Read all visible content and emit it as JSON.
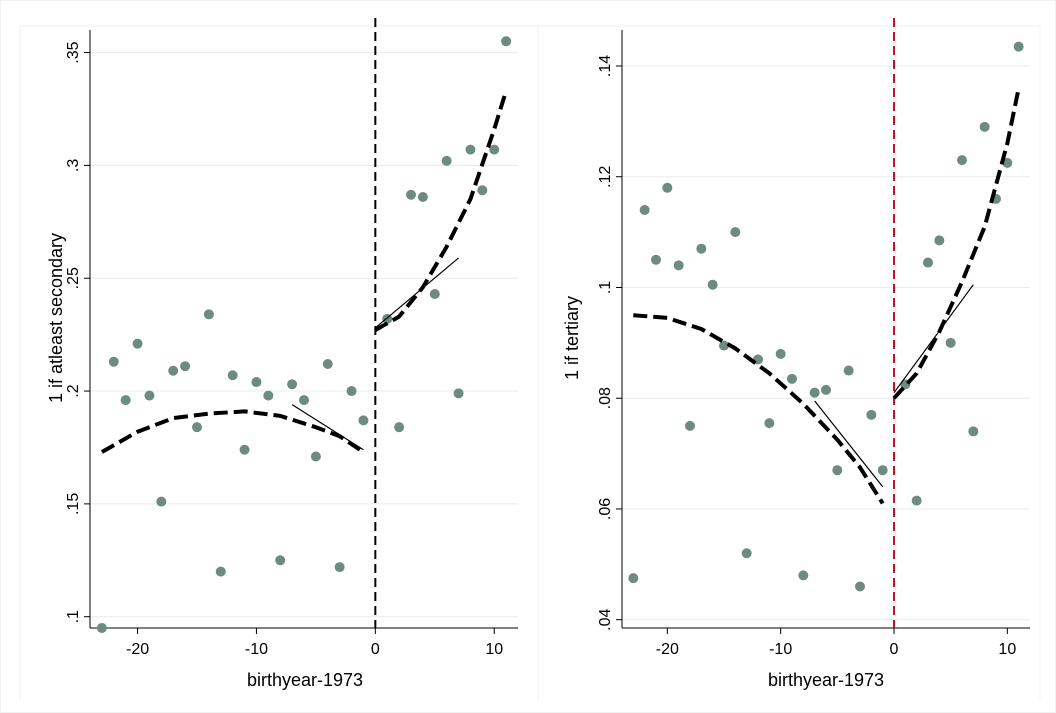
{
  "chart_data": [
    {
      "type": "scatter",
      "xlabel": "birthyear-1973",
      "ylabel": "1 if atleast secondary",
      "xlim": [
        -24,
        12
      ],
      "ylim": [
        0.095,
        0.36
      ],
      "x_ticks": [
        -20,
        -10,
        0,
        10
      ],
      "x_tick_labels": [
        "-20",
        "-10",
        "0",
        "10"
      ],
      "y_ticks": [
        0.1,
        0.15,
        0.2,
        0.25,
        0.3,
        0.35
      ],
      "y_tick_labels": [
        ".1",
        ".15",
        ".2",
        ".25",
        ".3",
        ".35"
      ],
      "grid": true,
      "cutoff": 0,
      "cutoff_color": "#000000",
      "point_color": "#6e8b82",
      "points": [
        [
          -23,
          0.095
        ],
        [
          -22,
          0.213
        ],
        [
          -21,
          0.196
        ],
        [
          -20,
          0.221
        ],
        [
          -19,
          0.198
        ],
        [
          -18,
          0.151
        ],
        [
          -17,
          0.209
        ],
        [
          -16,
          0.211
        ],
        [
          -15,
          0.184
        ],
        [
          -14,
          0.234
        ],
        [
          -13,
          0.12
        ],
        [
          -12,
          0.207
        ],
        [
          -11,
          0.174
        ],
        [
          -10,
          0.204
        ],
        [
          -9,
          0.198
        ],
        [
          -8,
          0.125
        ],
        [
          -7,
          0.203
        ],
        [
          -6,
          0.196
        ],
        [
          -5,
          0.171
        ],
        [
          -4,
          0.212
        ],
        [
          -3,
          0.122
        ],
        [
          -2,
          0.2
        ],
        [
          -1,
          0.187
        ],
        [
          1,
          0.232
        ],
        [
          2,
          0.184
        ],
        [
          3,
          0.287
        ],
        [
          4,
          0.286
        ],
        [
          5,
          0.243
        ],
        [
          6,
          0.302
        ],
        [
          7,
          0.199
        ],
        [
          8,
          0.307
        ],
        [
          9,
          0.289
        ],
        [
          10,
          0.307
        ],
        [
          11,
          0.355
        ]
      ],
      "fits": [
        {
          "style": "dashed",
          "points": [
            [
              -23,
              0.173
            ],
            [
              -20,
              0.182
            ],
            [
              -17,
              0.188
            ],
            [
              -14,
              0.19
            ],
            [
              -11,
              0.191
            ],
            [
              -8,
              0.189
            ],
            [
              -5,
              0.184
            ],
            [
              -3,
              0.18
            ],
            [
              -1,
              0.173
            ]
          ]
        },
        {
          "style": "dashed",
          "points": [
            [
              0,
              0.227
            ],
            [
              2,
              0.233
            ],
            [
              4,
              0.246
            ],
            [
              6,
              0.264
            ],
            [
              8,
              0.285
            ],
            [
              10,
              0.316
            ],
            [
              11,
              0.333
            ]
          ]
        },
        {
          "style": "thin",
          "points": [
            [
              -7,
              0.194
            ],
            [
              -1,
              0.174
            ]
          ]
        },
        {
          "style": "thin",
          "points": [
            [
              0,
              0.228
            ],
            [
              7,
              0.259
            ]
          ]
        }
      ]
    },
    {
      "type": "scatter",
      "xlabel": "birthyear-1973",
      "ylabel": "1 if tertiary",
      "xlim": [
        -24,
        12
      ],
      "ylim": [
        0.0385,
        0.1465
      ],
      "x_ticks": [
        -20,
        -10,
        0,
        10
      ],
      "x_tick_labels": [
        "-20",
        "-10",
        "0",
        "10"
      ],
      "y_ticks": [
        0.04,
        0.06,
        0.08,
        0.1,
        0.12,
        0.14
      ],
      "y_tick_labels": [
        ".04",
        ".06",
        ".08",
        ".1",
        ".12",
        ".14"
      ],
      "grid": true,
      "cutoff": 0,
      "cutoff_color": "#c8102e",
      "point_color": "#6e8b82",
      "points": [
        [
          -23,
          0.0475
        ],
        [
          -22,
          0.114
        ],
        [
          -21,
          0.105
        ],
        [
          -20,
          0.118
        ],
        [
          -19,
          0.104
        ],
        [
          -18,
          0.075
        ],
        [
          -17,
          0.107
        ],
        [
          -16,
          0.1005
        ],
        [
          -15,
          0.0895
        ],
        [
          -14,
          0.11
        ],
        [
          -13,
          0.052
        ],
        [
          -12,
          0.087
        ],
        [
          -11,
          0.0755
        ],
        [
          -10,
          0.088
        ],
        [
          -9,
          0.0835
        ],
        [
          -8,
          0.048
        ],
        [
          -7,
          0.081
        ],
        [
          -6,
          0.0815
        ],
        [
          -5,
          0.067
        ],
        [
          -4,
          0.085
        ],
        [
          -3,
          0.046
        ],
        [
          -2,
          0.077
        ],
        [
          -1,
          0.067
        ],
        [
          1,
          0.0825
        ],
        [
          2,
          0.0615
        ],
        [
          3,
          0.1045
        ],
        [
          4,
          0.1085
        ],
        [
          5,
          0.09
        ],
        [
          6,
          0.123
        ],
        [
          7,
          0.074
        ],
        [
          8,
          0.129
        ],
        [
          9,
          0.116
        ],
        [
          10,
          0.1225
        ],
        [
          11,
          0.1435
        ]
      ],
      "fits": [
        {
          "style": "dashed",
          "points": [
            [
              -23,
              0.095
            ],
            [
              -20,
              0.0945
            ],
            [
              -17,
              0.0925
            ],
            [
              -14,
              0.089
            ],
            [
              -11,
              0.0845
            ],
            [
              -8,
              0.079
            ],
            [
              -5,
              0.0725
            ],
            [
              -3,
              0.0675
            ],
            [
              -1,
              0.061
            ]
          ]
        },
        {
          "style": "dashed",
          "points": [
            [
              0,
              0.08
            ],
            [
              2,
              0.0845
            ],
            [
              4,
              0.092
            ],
            [
              6,
              0.101
            ],
            [
              8,
              0.111
            ],
            [
              10,
              0.126
            ],
            [
              11,
              0.136
            ]
          ]
        },
        {
          "style": "thin",
          "points": [
            [
              -7,
              0.0795
            ],
            [
              -1,
              0.064
            ]
          ]
        },
        {
          "style": "thin",
          "points": [
            [
              0,
              0.081
            ],
            [
              7,
              0.1005
            ]
          ]
        }
      ]
    }
  ]
}
